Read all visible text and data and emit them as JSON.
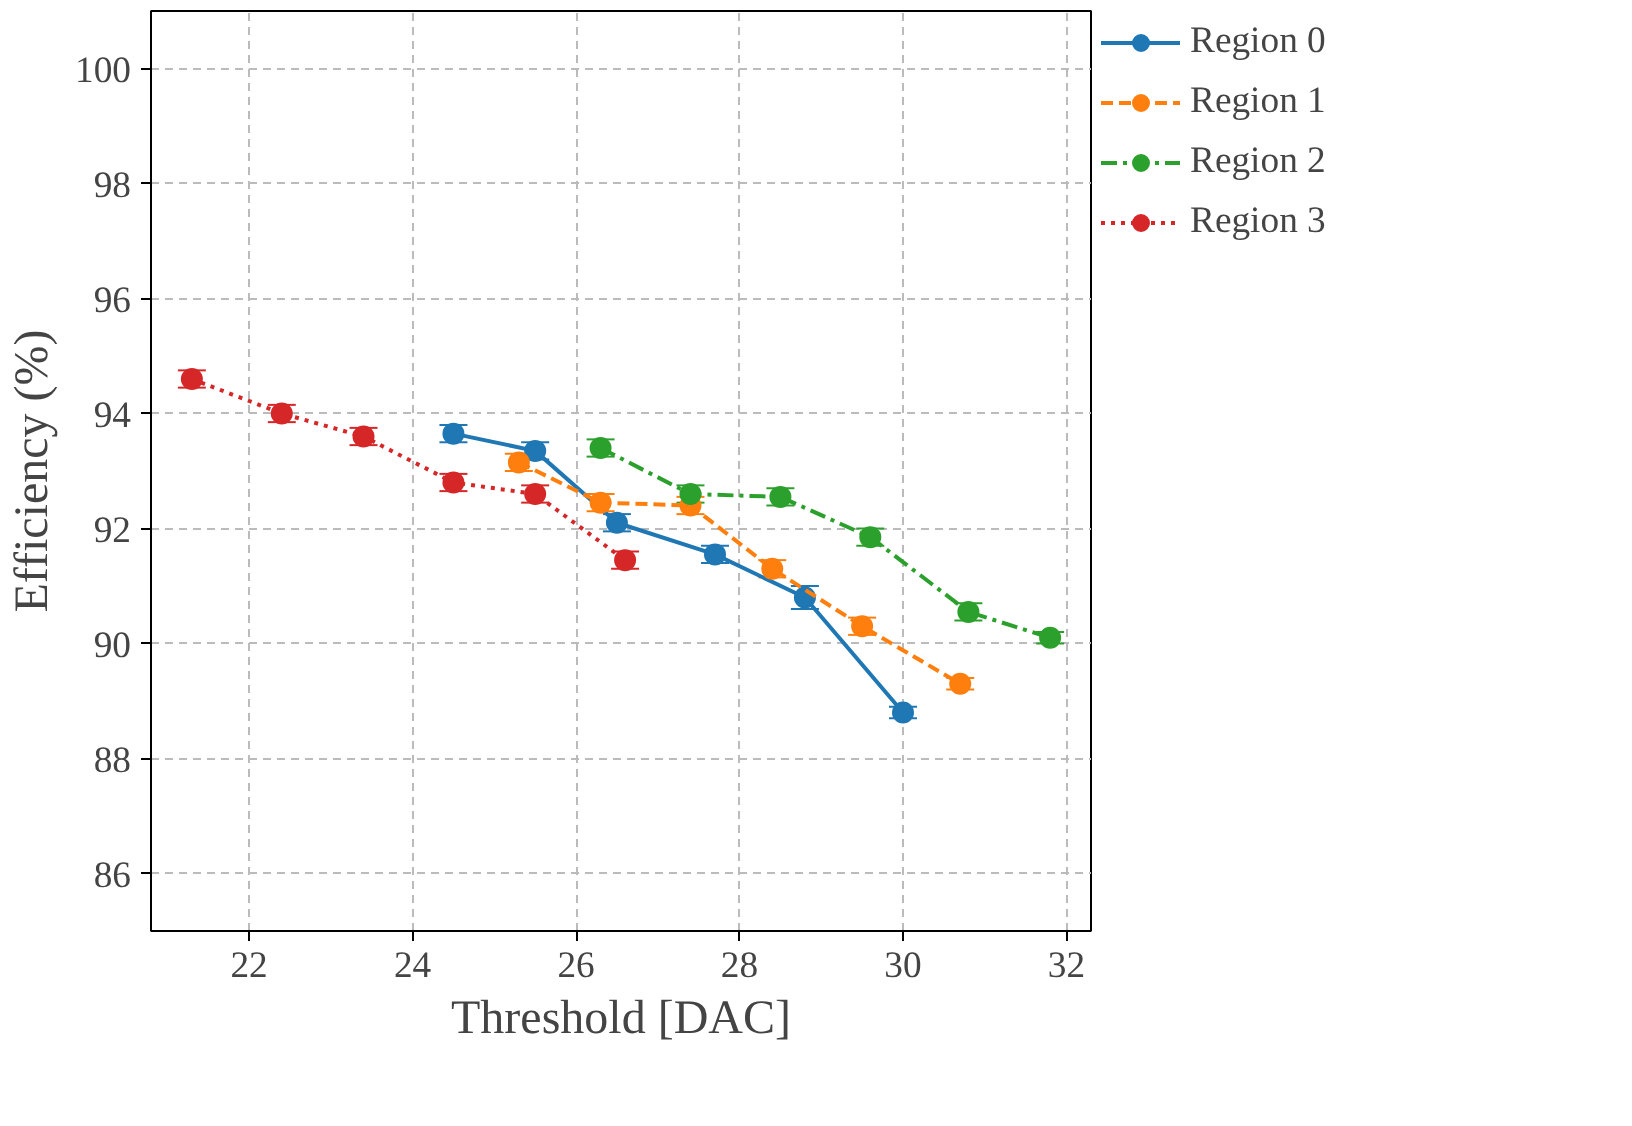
{
  "chart_data": {
    "type": "line",
    "xlabel": "Threshold [DAC]",
    "ylabel": "Efficiency (%)",
    "xlim": [
      20.8,
      32.3
    ],
    "ylim": [
      85,
      101
    ],
    "xticks": [
      22,
      24,
      26,
      28,
      30,
      32
    ],
    "yticks": [
      86,
      88,
      90,
      92,
      94,
      96,
      98,
      100
    ],
    "grid": true,
    "legend": "right",
    "marker": "circle",
    "series": [
      {
        "name": "Region 0",
        "color": "#1f77b4",
        "line_style": "solid",
        "x": [
          24.5,
          25.5,
          26.5,
          27.7,
          28.8,
          30.0
        ],
        "values": [
          93.65,
          93.35,
          92.1,
          91.55,
          90.8,
          88.8
        ],
        "errors": [
          0.15,
          0.15,
          0.15,
          0.15,
          0.2,
          0.1
        ]
      },
      {
        "name": "Region 1",
        "color": "#ff7f0e",
        "line_style": "dashed",
        "x": [
          25.3,
          26.3,
          27.4,
          28.4,
          29.5,
          30.7
        ],
        "values": [
          93.15,
          92.45,
          92.4,
          91.3,
          90.3,
          89.3
        ],
        "errors": [
          0.15,
          0.15,
          0.15,
          0.15,
          0.15,
          0.1
        ]
      },
      {
        "name": "Region 2",
        "color": "#2ca02c",
        "line_style": "dashdot",
        "x": [
          26.3,
          27.4,
          28.5,
          29.6,
          30.8,
          31.8
        ],
        "values": [
          93.4,
          92.6,
          92.55,
          91.85,
          90.55,
          90.1
        ],
        "errors": [
          0.15,
          0.15,
          0.15,
          0.15,
          0.15,
          0.1
        ]
      },
      {
        "name": "Region 3",
        "color": "#d62728",
        "line_style": "dotted",
        "x": [
          21.3,
          22.4,
          23.4,
          24.5,
          25.5,
          26.6
        ],
        "values": [
          94.6,
          94.0,
          93.6,
          92.8,
          92.6,
          91.45
        ],
        "errors": [
          0.15,
          0.15,
          0.15,
          0.15,
          0.15,
          0.15
        ]
      }
    ]
  }
}
